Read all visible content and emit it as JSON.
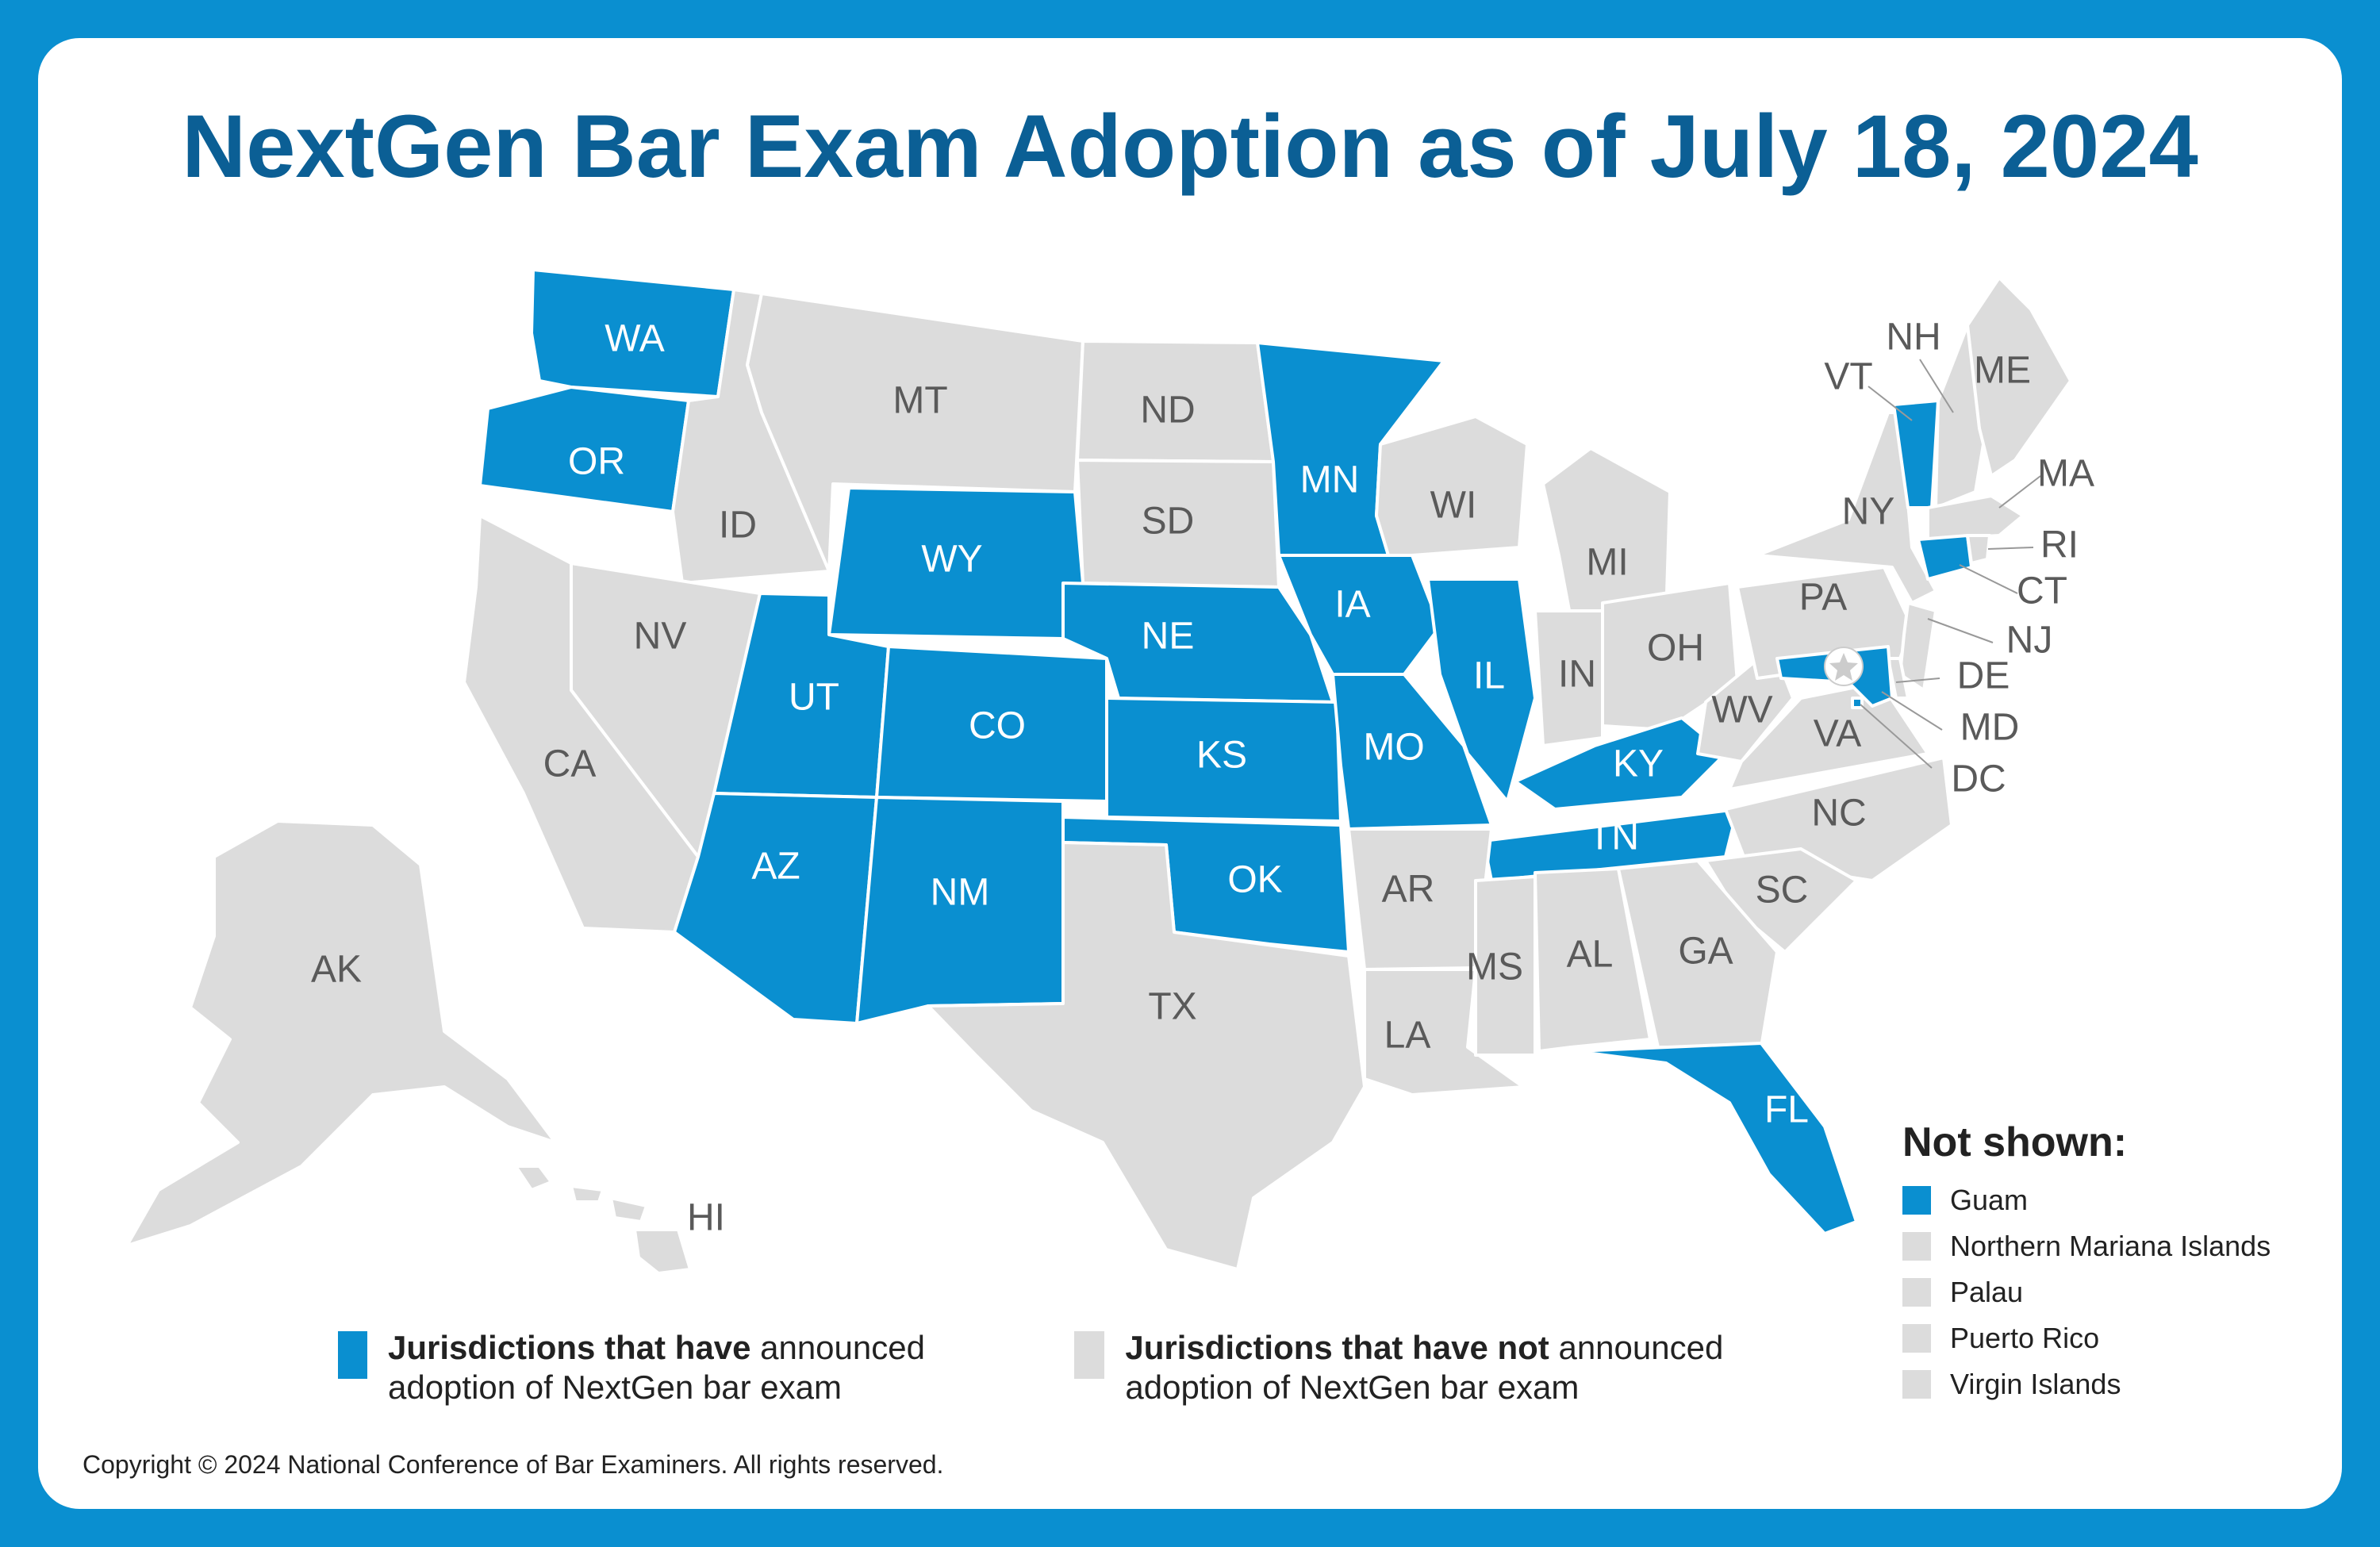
{
  "title": "NextGen Bar Exam Adoption as of July 18, 2024",
  "colors": {
    "adopted": "#0a8fd0",
    "not_adopted": "#dcdcdc",
    "label_on_adopted": "#ffffff",
    "label_default": "#5a5a5a"
  },
  "states": [
    {
      "code": "WA",
      "adopted": true
    },
    {
      "code": "OR",
      "adopted": true
    },
    {
      "code": "ID",
      "adopted": false
    },
    {
      "code": "MT",
      "adopted": false
    },
    {
      "code": "ND",
      "adopted": false
    },
    {
      "code": "SD",
      "adopted": false
    },
    {
      "code": "MN",
      "adopted": true
    },
    {
      "code": "WI",
      "adopted": false
    },
    {
      "code": "MI",
      "adopted": false
    },
    {
      "code": "WY",
      "adopted": true
    },
    {
      "code": "NE",
      "adopted": true
    },
    {
      "code": "IA",
      "adopted": true
    },
    {
      "code": "IL",
      "adopted": true
    },
    {
      "code": "IN",
      "adopted": false
    },
    {
      "code": "OH",
      "adopted": false
    },
    {
      "code": "NV",
      "adopted": false
    },
    {
      "code": "UT",
      "adopted": true
    },
    {
      "code": "CO",
      "adopted": true
    },
    {
      "code": "KS",
      "adopted": true
    },
    {
      "code": "MO",
      "adopted": true
    },
    {
      "code": "KY",
      "adopted": true
    },
    {
      "code": "WV",
      "adopted": false
    },
    {
      "code": "VA",
      "adopted": false
    },
    {
      "code": "CA",
      "adopted": false
    },
    {
      "code": "AZ",
      "adopted": true
    },
    {
      "code": "NM",
      "adopted": true
    },
    {
      "code": "OK",
      "adopted": true
    },
    {
      "code": "AR",
      "adopted": false
    },
    {
      "code": "TN",
      "adopted": true
    },
    {
      "code": "NC",
      "adopted": false
    },
    {
      "code": "SC",
      "adopted": false
    },
    {
      "code": "TX",
      "adopted": false
    },
    {
      "code": "LA",
      "adopted": false
    },
    {
      "code": "MS",
      "adopted": false
    },
    {
      "code": "AL",
      "adopted": false
    },
    {
      "code": "GA",
      "adopted": false
    },
    {
      "code": "FL",
      "adopted": true
    },
    {
      "code": "AK",
      "adopted": false
    },
    {
      "code": "HI",
      "adopted": false
    },
    {
      "code": "PA",
      "adopted": false
    },
    {
      "code": "NY",
      "adopted": false
    },
    {
      "code": "VT",
      "adopted": true
    },
    {
      "code": "NH",
      "adopted": false
    },
    {
      "code": "ME",
      "adopted": false
    },
    {
      "code": "MA",
      "adopted": false
    },
    {
      "code": "RI",
      "adopted": false
    },
    {
      "code": "CT",
      "adopted": true
    },
    {
      "code": "NJ",
      "adopted": false
    },
    {
      "code": "DE",
      "adopted": false
    },
    {
      "code": "MD",
      "adopted": true
    },
    {
      "code": "DC",
      "adopted": true
    }
  ],
  "not_shown": {
    "heading": "Not shown:",
    "items": [
      {
        "label": "Guam",
        "adopted": true
      },
      {
        "label": "Northern Mariana Islands",
        "adopted": false
      },
      {
        "label": "Palau",
        "adopted": false
      },
      {
        "label": "Puerto Rico",
        "adopted": false
      },
      {
        "label": "Virgin Islands",
        "adopted": false
      }
    ]
  },
  "legend": {
    "adopted": {
      "bold": "Jurisdictions that have",
      "rest": " announced adoption of NextGen bar exam"
    },
    "not_adopted": {
      "bold": "Jurisdictions that have not",
      "rest": " announced adoption of NextGen bar exam"
    }
  },
  "copyright": "Copyright © 2024 National Conference of Bar Examiners. All rights reserved."
}
